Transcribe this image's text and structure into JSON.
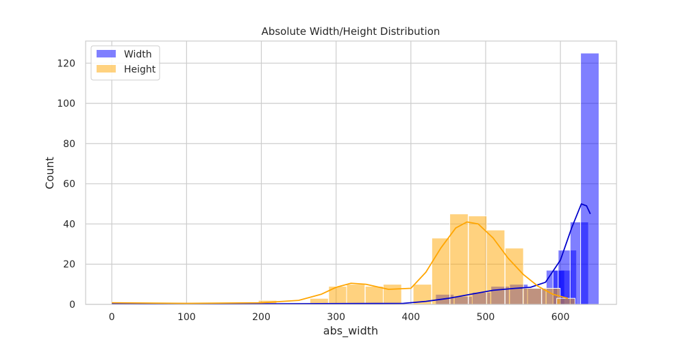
{
  "chart_data": {
    "type": "histogram",
    "title": "Absolute Width/Height Distribution",
    "xlabel": "abs_width",
    "ylabel": "Count",
    "xlim": [
      -35,
      675
    ],
    "ylim": [
      0,
      131
    ],
    "xticks": [
      0,
      100,
      200,
      300,
      400,
      500,
      600
    ],
    "yticks": [
      0,
      20,
      40,
      60,
      80,
      100,
      120
    ],
    "grid": true,
    "legend_position": "top-left",
    "bin_width": 24.6,
    "series": [
      {
        "name": "Width",
        "color": "#0000ff",
        "kde_color": "#0000cc",
        "bins": [
          {
            "start": 0,
            "count": 1
          },
          {
            "start": 433,
            "count": 5
          },
          {
            "start": 458,
            "count": 4
          },
          {
            "start": 482,
            "count": 6
          },
          {
            "start": 507,
            "count": 9
          },
          {
            "start": 532,
            "count": 10
          },
          {
            "start": 556,
            "count": 8
          },
          {
            "start": 581,
            "count": 17
          },
          {
            "start": 590,
            "count": 17
          },
          {
            "start": 597,
            "count": 27
          },
          {
            "start": 613,
            "count": 41
          },
          {
            "start": 627,
            "count": 125
          }
        ],
        "kde": {
          "x": [
            0,
            200,
            390,
            420,
            450,
            480,
            510,
            540,
            560,
            580,
            600,
            615,
            628,
            635,
            640
          ],
          "y": [
            0.5,
            0.3,
            0.5,
            1.5,
            3,
            5,
            7,
            8,
            8.5,
            11,
            22,
            38,
            50,
            49,
            45
          ]
        }
      },
      {
        "name": "Height",
        "color": "#ffa500",
        "kde_color": "#ffa500",
        "bins": [
          {
            "start": 0,
            "count": 1
          },
          {
            "start": 196,
            "count": 2
          },
          {
            "start": 265,
            "count": 3
          },
          {
            "start": 290,
            "count": 9
          },
          {
            "start": 314,
            "count": 10
          },
          {
            "start": 339,
            "count": 9
          },
          {
            "start": 363,
            "count": 10
          },
          {
            "start": 403,
            "count": 10
          },
          {
            "start": 428,
            "count": 33
          },
          {
            "start": 452,
            "count": 45
          },
          {
            "start": 477,
            "count": 44
          },
          {
            "start": 501,
            "count": 37
          },
          {
            "start": 526,
            "count": 28
          },
          {
            "start": 550,
            "count": 8
          },
          {
            "start": 575,
            "count": 8
          },
          {
            "start": 595,
            "count": 3
          }
        ],
        "kde": {
          "x": [
            0,
            100,
            200,
            250,
            280,
            300,
            320,
            340,
            370,
            400,
            420,
            440,
            460,
            475,
            490,
            510,
            530,
            550,
            570,
            590,
            610
          ],
          "y": [
            0.8,
            0.5,
            0.8,
            2,
            5,
            8.5,
            10.5,
            10,
            7.5,
            8,
            16,
            28,
            38,
            41,
            40,
            33,
            23,
            15,
            9,
            5,
            3
          ]
        }
      }
    ]
  }
}
